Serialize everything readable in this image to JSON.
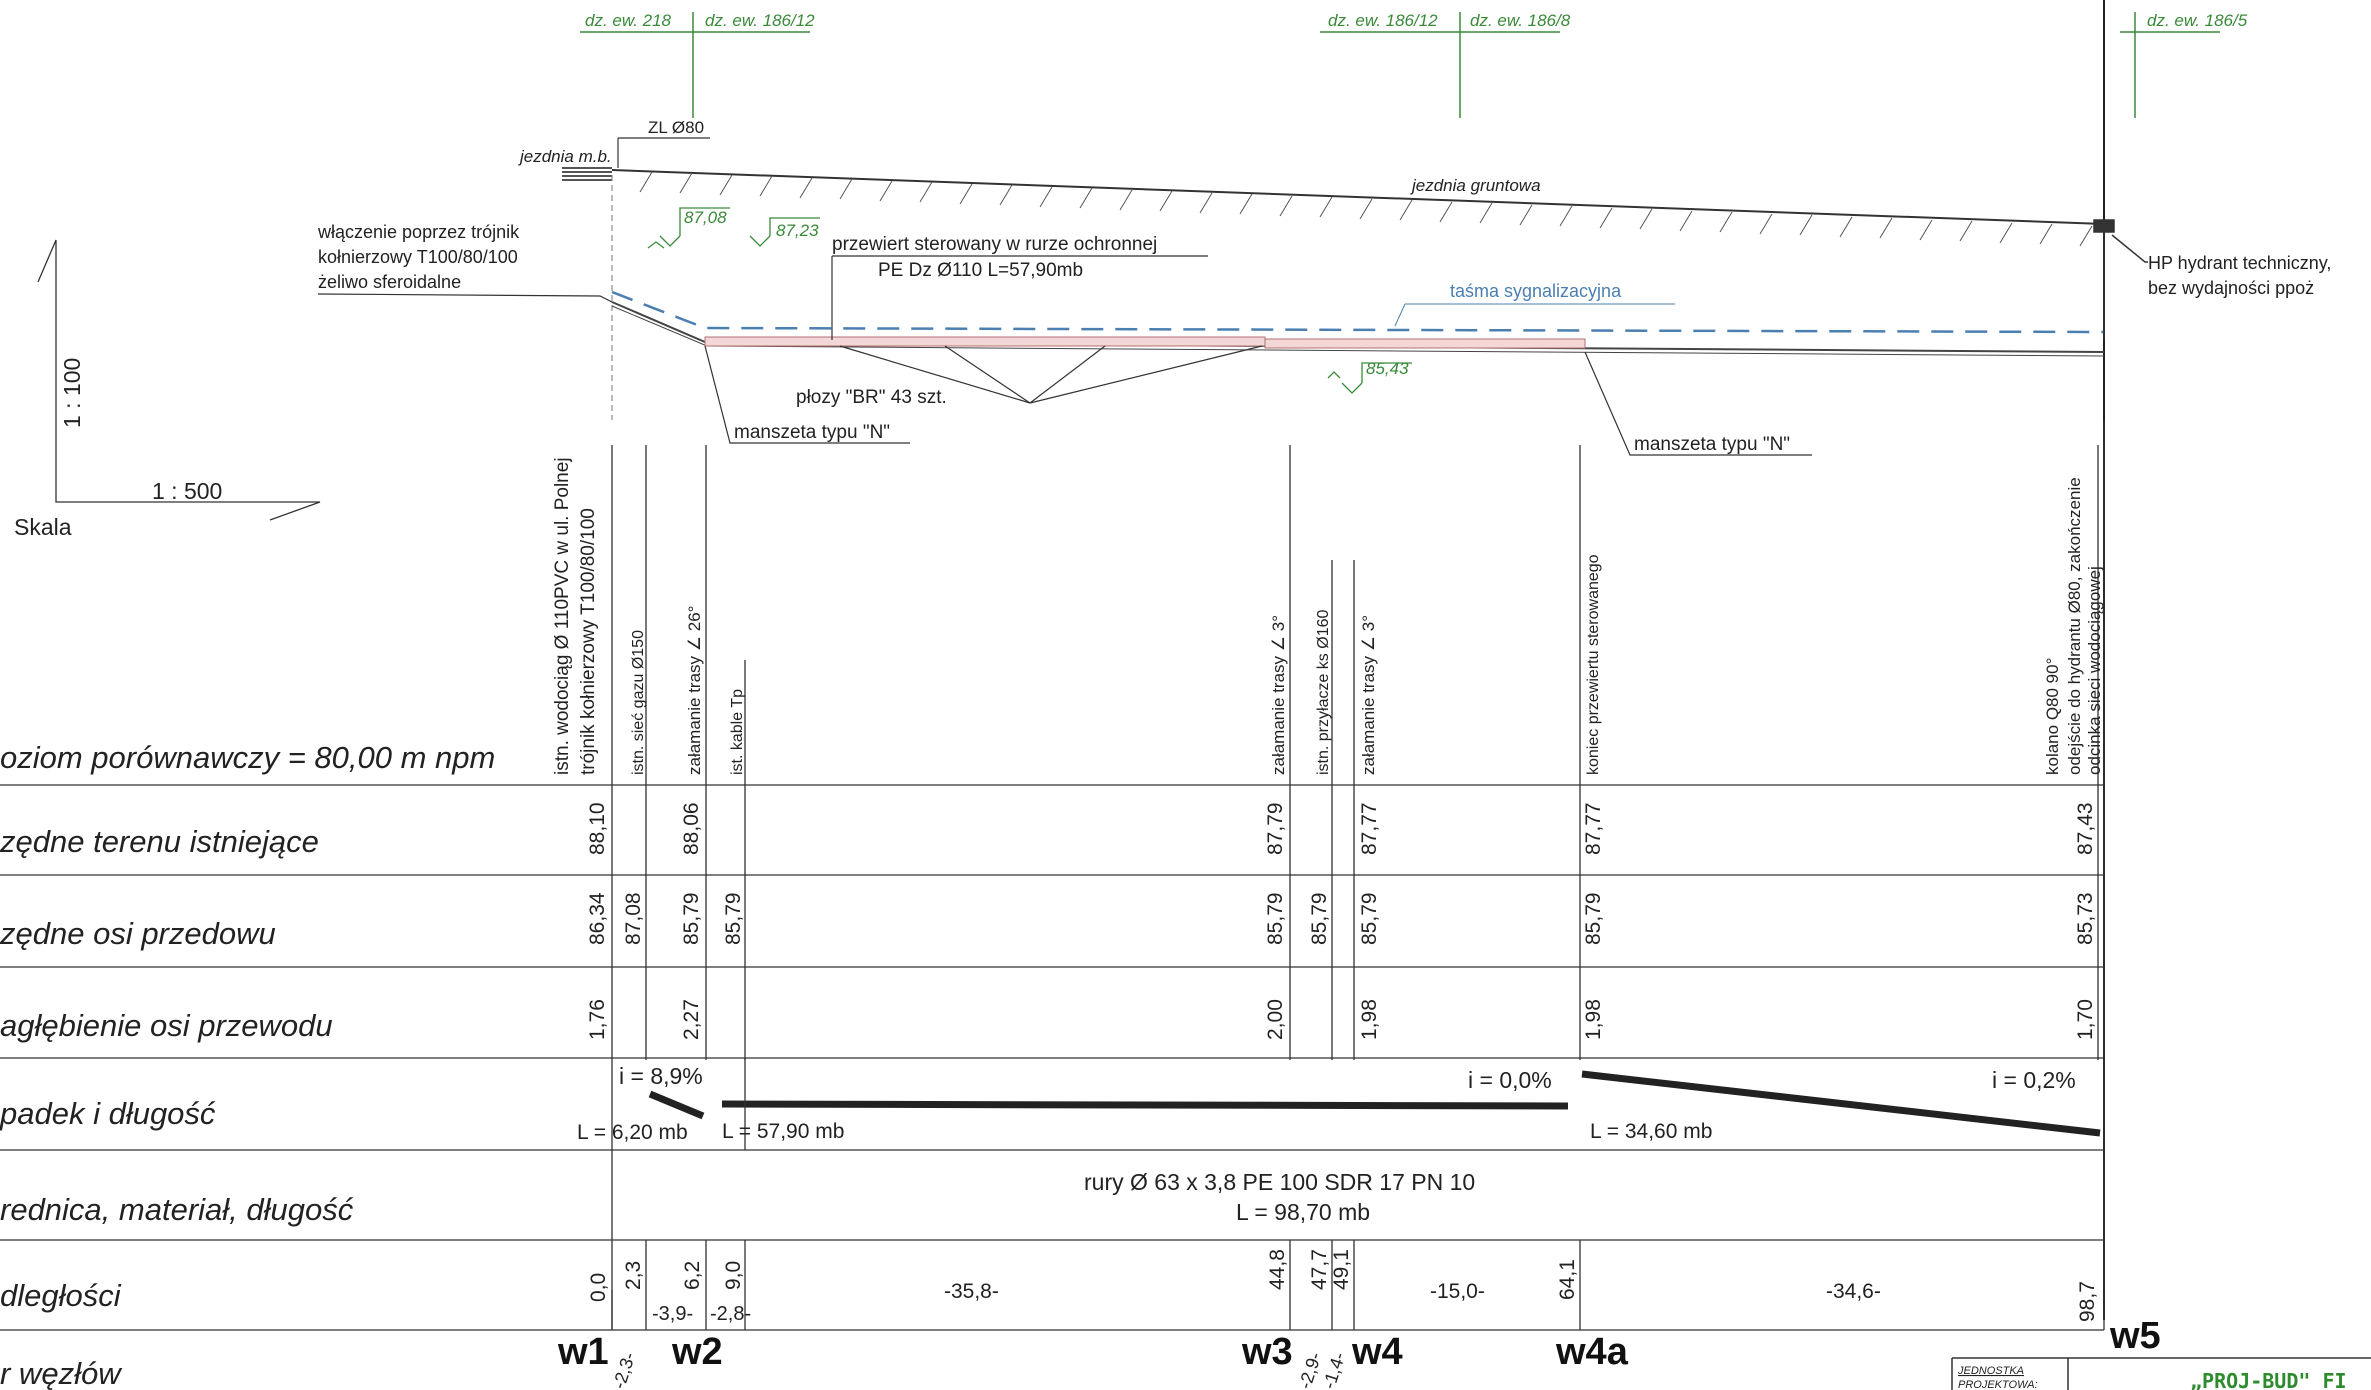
{
  "parcels": [
    "dz. ew. 218",
    "dz. ew. 186/12",
    "dz. ew. 186/12",
    "dz. ew. 186/8",
    "dz. ew. 186/5"
  ],
  "scale": {
    "vertical": "1 : 100",
    "horizontal": "1 : 500",
    "label": "Skala"
  },
  "profile_labels": {
    "zl": "ZL Ø80",
    "jezdnia_mb": "jezdnia m.b.",
    "jezdnia_gruntowa": "jezdnia gruntowa",
    "wlaczenie_1": "włączenie poprzez trójnik",
    "wlaczenie_2": "kołnierzowy T100/80/100",
    "wlaczenie_3": "żeliwo sferoidalne",
    "elev_1": "87,08",
    "elev_2": "87,23",
    "elev_3": "85,43",
    "przewiert_1": "przewiert sterowany w rurze ochronnej",
    "przewiert_2": "PE Dz Ø110 L=57,90mb",
    "tasma": "taśma sygnalizacyjna",
    "plozy": "płozy \"BR\" 43 szt.",
    "manszeta_1": "manszeta typu \"N\"",
    "manszeta_2": "manszeta typu \"N\"",
    "hydrant_1": "HP hydrant  techniczny,",
    "hydrant_2": "bez wydajności ppoż"
  },
  "vertical_labels": {
    "v1a": "istn. wodociąg Ø 110PVC w ul. Polnej",
    "v1b": "trójnik kołnierzowy T100/80/100",
    "v2": "istn. sieć gazu Ø150",
    "v3": "załamanie trasy ∠ 26°",
    "v4": "ist. kable Tp",
    "v5": "załamanie trasy ∠ 3°",
    "v6": "istn. przyłacze ks Ø160",
    "v7": "załamanie trasy ∠ 3°",
    "v8": "koniec przewiertu sterowanego",
    "v9a": "kolano Q80 90°",
    "v9b": "odejście do hydrantu  Ø80, zakończenie",
    "v9c": "odcinka sieci wodociągowej"
  },
  "rows": {
    "poziom": "oziom porównawczy  = 80,00 m npm",
    "terenu": "zędne terenu istniejące",
    "osi": "zędne osi przedowu",
    "zaglebienie": "agłębienie osi przewodu",
    "spadek": "padek i długość",
    "srednica": "rednica, materiał, długość",
    "odleglosci": "dległości",
    "wezly": "r węzłów"
  },
  "terrain_values": [
    "88,10",
    "88,06",
    "87,79",
    "87,77",
    "87,77",
    "87,43"
  ],
  "axis_values": [
    "86,34",
    "87,08",
    "85,79",
    "85,79",
    "85,79",
    "85,79",
    "85,79",
    "85,79",
    "85,73"
  ],
  "depth_values": [
    "1,76",
    "2,27",
    "2,00",
    "1,98",
    "1,98",
    "1,70"
  ],
  "slopes": {
    "i1": "i = 8,9%",
    "l1": "L = 6,20 mb",
    "l2": "L = 57,90 mb",
    "i2": "i = 0,0%",
    "l3": "L = 34,60 mb",
    "i3": "i = 0,2%"
  },
  "pipe": {
    "line1": "rury Ø 63 x 3,8    PE 100   SDR 17 PN 10",
    "line2": "L = 98,70 mb"
  },
  "distances": [
    "0,0",
    "2,3",
    "6,2",
    "9,0",
    "44,8",
    "47,7",
    "49,1",
    "64,1",
    "98,7"
  ],
  "segments": [
    "-3,9-",
    "-2,8-",
    "-35,8-",
    "-15,0-",
    "-34,6-"
  ],
  "small_segments": [
    "-2,3-",
    "-2,9-",
    "-1,4-"
  ],
  "nodes": [
    "w1",
    "w2",
    "w3",
    "w4",
    "w4a",
    "w5"
  ],
  "stamp": {
    "unit_1": "JEDNOSTKA",
    "unit_2": "PROJEKTOWA:",
    "company": "„PROJ-BUD\" FI"
  },
  "colors": {
    "green": "#3a8a3a",
    "blue": "#4a7fb0"
  }
}
